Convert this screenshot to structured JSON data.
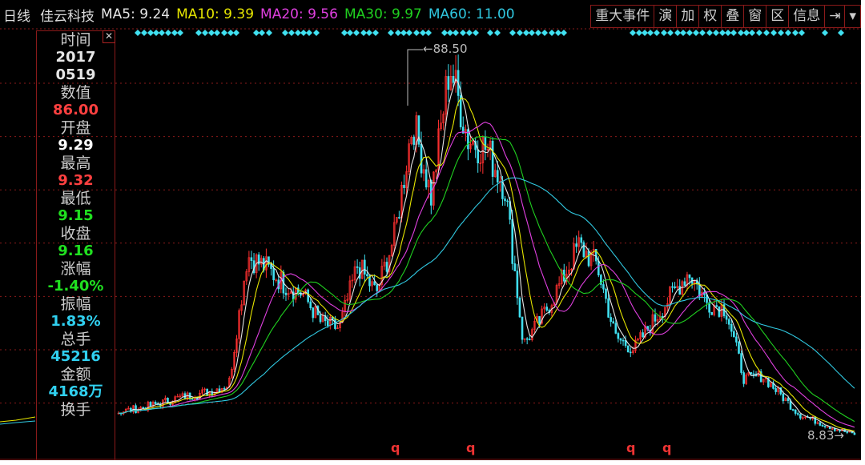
{
  "header": {
    "period": "日线",
    "stock_name": "佳云科技",
    "ma": [
      {
        "label": "MA5: 9.24",
        "color": "#e6e6e6"
      },
      {
        "label": "MA10: 9.39",
        "color": "#e6e600"
      },
      {
        "label": "MA20: 9.56",
        "color": "#e040e0"
      },
      {
        "label": "MA30: 9.97",
        "color": "#20d020"
      },
      {
        "label": "MA60: 11.00",
        "color": "#30c8e0"
      }
    ],
    "buttons": [
      "重大事件",
      "演",
      "加",
      "权",
      "叠",
      "窗",
      "区",
      "信息",
      "⇥",
      "▾"
    ]
  },
  "info_panel": {
    "close_icon": "close-icon",
    "items": [
      {
        "label": "时间",
        "value": "2017\n0519",
        "color": "#e6e6e6"
      },
      {
        "label": "数值",
        "value": "86.00",
        "color": "#ff4040"
      },
      {
        "label": "开盘",
        "value": "9.29",
        "color": "#ffffff"
      },
      {
        "label": "最高",
        "value": "9.32",
        "color": "#ff4040"
      },
      {
        "label": "最低",
        "value": "9.15",
        "color": "#20e020"
      },
      {
        "label": "收盘",
        "value": "9.16",
        "color": "#20e020"
      },
      {
        "label": "涨幅",
        "value": "-1.40%",
        "color": "#20e020"
      },
      {
        "label": "振幅",
        "value": "1.83%",
        "color": "#30d0f0"
      },
      {
        "label": "总手",
        "value": "45216",
        "color": "#30d0f0"
      },
      {
        "label": "金额",
        "value": "4168万",
        "color": "#30d0f0"
      },
      {
        "label": "换手",
        "value": "",
        "color": "#30d0f0"
      }
    ]
  },
  "chart_data": {
    "type": "candlestick",
    "price_scale": "linear",
    "max_label": "88.50",
    "last_label": "8.83",
    "grid": "dotted horizontal",
    "up_color": "#ff3030",
    "down_color": "#40e0f0",
    "approx_close_path": [
      13.5,
      14.2,
      15.0,
      16.2,
      17.0,
      17.8,
      19.3,
      45.8,
      43.5,
      40.0,
      38.0,
      32.0,
      30.8,
      44.0,
      38.0,
      50.0,
      73.9,
      58.0,
      85.5,
      70.0,
      68.0,
      60.0,
      27.5,
      33.0,
      40.0,
      48.0,
      44.0,
      29.0,
      26.5,
      32.0,
      37.5,
      42.5,
      36.0,
      35.0,
      20.3,
      21.0,
      17.0,
      13.0,
      11.5,
      10.0,
      8.83
    ],
    "event_markers": [
      "q",
      "q",
      "q",
      "q"
    ]
  }
}
